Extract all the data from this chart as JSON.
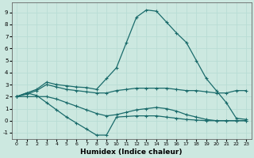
{
  "xlabel": "Humidex (Indice chaleur)",
  "bg_color": "#cce8e0",
  "grid_color": "#b8ddd5",
  "line_color": "#1a6b6b",
  "xlim": [
    -0.5,
    23.5
  ],
  "ylim": [
    -1.5,
    9.8
  ],
  "xticks": [
    0,
    1,
    2,
    3,
    4,
    5,
    6,
    7,
    8,
    9,
    10,
    11,
    12,
    13,
    14,
    15,
    16,
    17,
    18,
    19,
    20,
    21,
    22,
    23
  ],
  "yticks": [
    -1,
    0,
    1,
    2,
    3,
    4,
    5,
    6,
    7,
    8,
    9
  ],
  "line1_x": [
    0,
    1,
    2,
    3,
    4,
    5,
    6,
    7,
    8,
    9,
    10,
    11,
    12,
    13,
    14,
    15,
    16,
    17,
    18,
    19,
    20,
    21,
    22,
    23
  ],
  "line1_y": [
    2.0,
    2.3,
    2.6,
    3.2,
    3.0,
    2.9,
    2.8,
    2.75,
    2.6,
    3.5,
    4.4,
    6.5,
    8.6,
    9.2,
    9.1,
    8.2,
    7.3,
    6.5,
    5.0,
    3.5,
    2.5,
    1.5,
    0.2,
    0.1
  ],
  "line2_x": [
    0,
    1,
    2,
    3,
    4,
    5,
    6,
    7,
    8,
    9,
    10,
    11,
    12,
    13,
    14,
    15,
    16,
    17,
    18,
    19,
    20,
    21,
    22,
    23
  ],
  "line2_y": [
    2.0,
    2.2,
    2.5,
    3.0,
    2.8,
    2.6,
    2.5,
    2.4,
    2.3,
    2.3,
    2.5,
    2.6,
    2.7,
    2.7,
    2.7,
    2.7,
    2.6,
    2.5,
    2.5,
    2.4,
    2.3,
    2.3,
    2.5,
    2.5
  ],
  "line3_x": [
    0,
    1,
    2,
    3,
    4,
    5,
    6,
    7,
    8,
    9,
    10,
    11,
    12,
    13,
    14,
    15,
    16,
    17,
    18,
    19,
    20,
    21,
    22,
    23
  ],
  "line3_y": [
    2.0,
    2.3,
    2.1,
    1.5,
    0.9,
    0.3,
    -0.2,
    -0.7,
    -1.2,
    -1.2,
    0.3,
    0.35,
    0.4,
    0.4,
    0.4,
    0.3,
    0.2,
    0.1,
    0.05,
    0.0,
    0.0,
    0.0,
    0.0,
    0.0
  ],
  "line4_x": [
    0,
    1,
    2,
    3,
    4,
    5,
    6,
    7,
    8,
    9,
    10,
    11,
    12,
    13,
    14,
    15,
    16,
    17,
    18,
    19,
    20,
    21,
    22,
    23
  ],
  "line4_y": [
    2.0,
    2.0,
    2.0,
    2.0,
    1.8,
    1.5,
    1.2,
    0.9,
    0.6,
    0.4,
    0.5,
    0.7,
    0.9,
    1.0,
    1.1,
    1.0,
    0.8,
    0.5,
    0.3,
    0.1,
    0.0,
    0.0,
    0.0,
    0.0
  ]
}
